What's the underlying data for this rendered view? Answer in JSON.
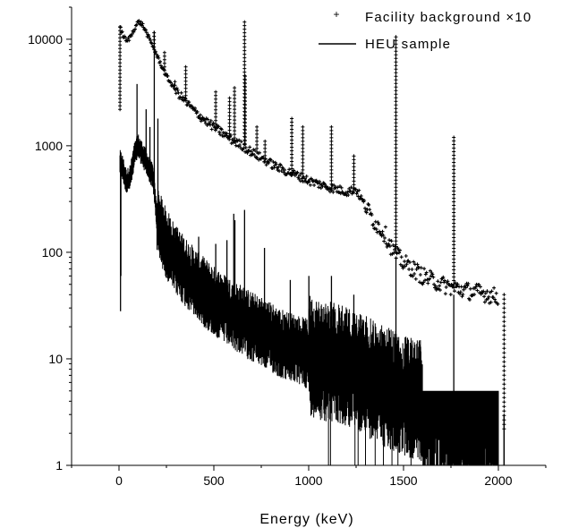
{
  "chart_data": {
    "type": "line",
    "xlabel": "Energy (keV)",
    "ylabel": "",
    "xlim": [
      -250,
      2250
    ],
    "ylim": [
      1,
      20000
    ],
    "yscale": "log",
    "x_ticks": [
      0,
      500,
      1000,
      1500,
      2000
    ],
    "y_ticks": [
      1,
      10,
      100,
      1000,
      10000
    ],
    "x_tick_labels": [
      "0",
      "500",
      "1000",
      "1500",
      "2000"
    ],
    "y_tick_labels": [
      "1",
      "10",
      "100",
      "1000",
      "10000"
    ],
    "grid": false,
    "legend_position": "top-right",
    "series": [
      {
        "name": "Facility background ×10",
        "style": "markers",
        "color": "#000000",
        "x": [
          5,
          20,
          40,
          60,
          80,
          100,
          120,
          140,
          160,
          180,
          200,
          250,
          300,
          350,
          400,
          450,
          500,
          550,
          600,
          650,
          700,
          750,
          800,
          850,
          900,
          950,
          1000,
          1050,
          1100,
          1150,
          1200,
          1250,
          1300,
          1350,
          1400,
          1450,
          1500,
          1550,
          1600,
          1650,
          1700,
          1750,
          1800,
          1850,
          1900,
          1950,
          2000,
          2030
        ],
        "y": [
          13000,
          11000,
          9500,
          10500,
          12500,
          14500,
          14000,
          12000,
          10000,
          8500,
          7000,
          4500,
          3300,
          2600,
          2100,
          1750,
          1500,
          1300,
          1120,
          1000,
          870,
          770,
          680,
          610,
          560,
          520,
          470,
          440,
          410,
          390,
          370,
          390,
          270,
          190,
          150,
          100,
          80,
          70,
          60,
          55,
          50,
          47,
          45,
          43,
          42,
          40,
          38,
          2
        ],
        "peaks": [
          {
            "x": 5,
            "y": 2100
          },
          {
            "x": 185,
            "y": 11500
          },
          {
            "x": 240,
            "y": 7500
          },
          {
            "x": 295,
            "y": 4000
          },
          {
            "x": 352,
            "y": 5500
          },
          {
            "x": 510,
            "y": 3200
          },
          {
            "x": 583,
            "y": 2800
          },
          {
            "x": 609,
            "y": 3500
          },
          {
            "x": 665,
            "y": 4500
          },
          {
            "x": 662,
            "y": 14500
          },
          {
            "x": 727,
            "y": 1500
          },
          {
            "x": 770,
            "y": 1100
          },
          {
            "x": 911,
            "y": 1800
          },
          {
            "x": 969,
            "y": 1500
          },
          {
            "x": 1120,
            "y": 1500
          },
          {
            "x": 1238,
            "y": 800
          },
          {
            "x": 1460,
            "y": 10500
          },
          {
            "x": 1765,
            "y": 1200
          }
        ]
      },
      {
        "name": "HEU sample",
        "style": "line",
        "color": "#000000",
        "x": [
          5,
          20,
          40,
          60,
          80,
          100,
          120,
          140,
          160,
          180,
          200,
          250,
          300,
          350,
          400,
          450,
          500,
          550,
          600,
          650,
          700,
          750,
          800,
          850,
          900,
          950,
          1000,
          1050,
          1100,
          1150,
          1200,
          1250,
          1300,
          1350,
          1400,
          1450,
          1500,
          1550,
          1600,
          1650,
          1700,
          1750,
          1800,
          1850,
          1900,
          1950,
          2000,
          2030
        ],
        "y": [
          700,
          620,
          450,
          520,
          800,
          1000,
          850,
          720,
          600,
          500,
          200,
          120,
          85,
          65,
          52,
          42,
          35,
          30,
          26,
          23,
          20,
          18,
          16,
          14,
          13,
          12,
          11,
          10,
          9.5,
          9,
          8.5,
          8,
          7,
          6,
          5.5,
          5,
          4.5,
          4.2,
          4,
          3.8,
          3.6,
          3.5,
          3.3,
          3.2,
          3,
          3,
          3,
          1
        ],
        "peaks": [
          {
            "x": 8,
            "y": 28
          },
          {
            "x": 10,
            "y": 60
          },
          {
            "x": 95,
            "y": 3800
          },
          {
            "x": 143,
            "y": 2200
          },
          {
            "x": 163,
            "y": 1500
          },
          {
            "x": 186,
            "y": 12000
          },
          {
            "x": 205,
            "y": 1800
          },
          {
            "x": 300,
            "y": 170
          },
          {
            "x": 420,
            "y": 140
          },
          {
            "x": 510,
            "y": 120
          },
          {
            "x": 569,
            "y": 130
          },
          {
            "x": 605,
            "y": 230
          },
          {
            "x": 611,
            "y": 200
          },
          {
            "x": 662,
            "y": 250
          },
          {
            "x": 767,
            "y": 110
          },
          {
            "x": 903,
            "y": 55
          },
          {
            "x": 1001,
            "y": 60
          },
          {
            "x": 1120,
            "y": 60
          },
          {
            "x": 1238,
            "y": 40
          },
          {
            "x": 1460,
            "y": 90
          },
          {
            "x": 1765,
            "y": 40
          }
        ]
      }
    ]
  }
}
